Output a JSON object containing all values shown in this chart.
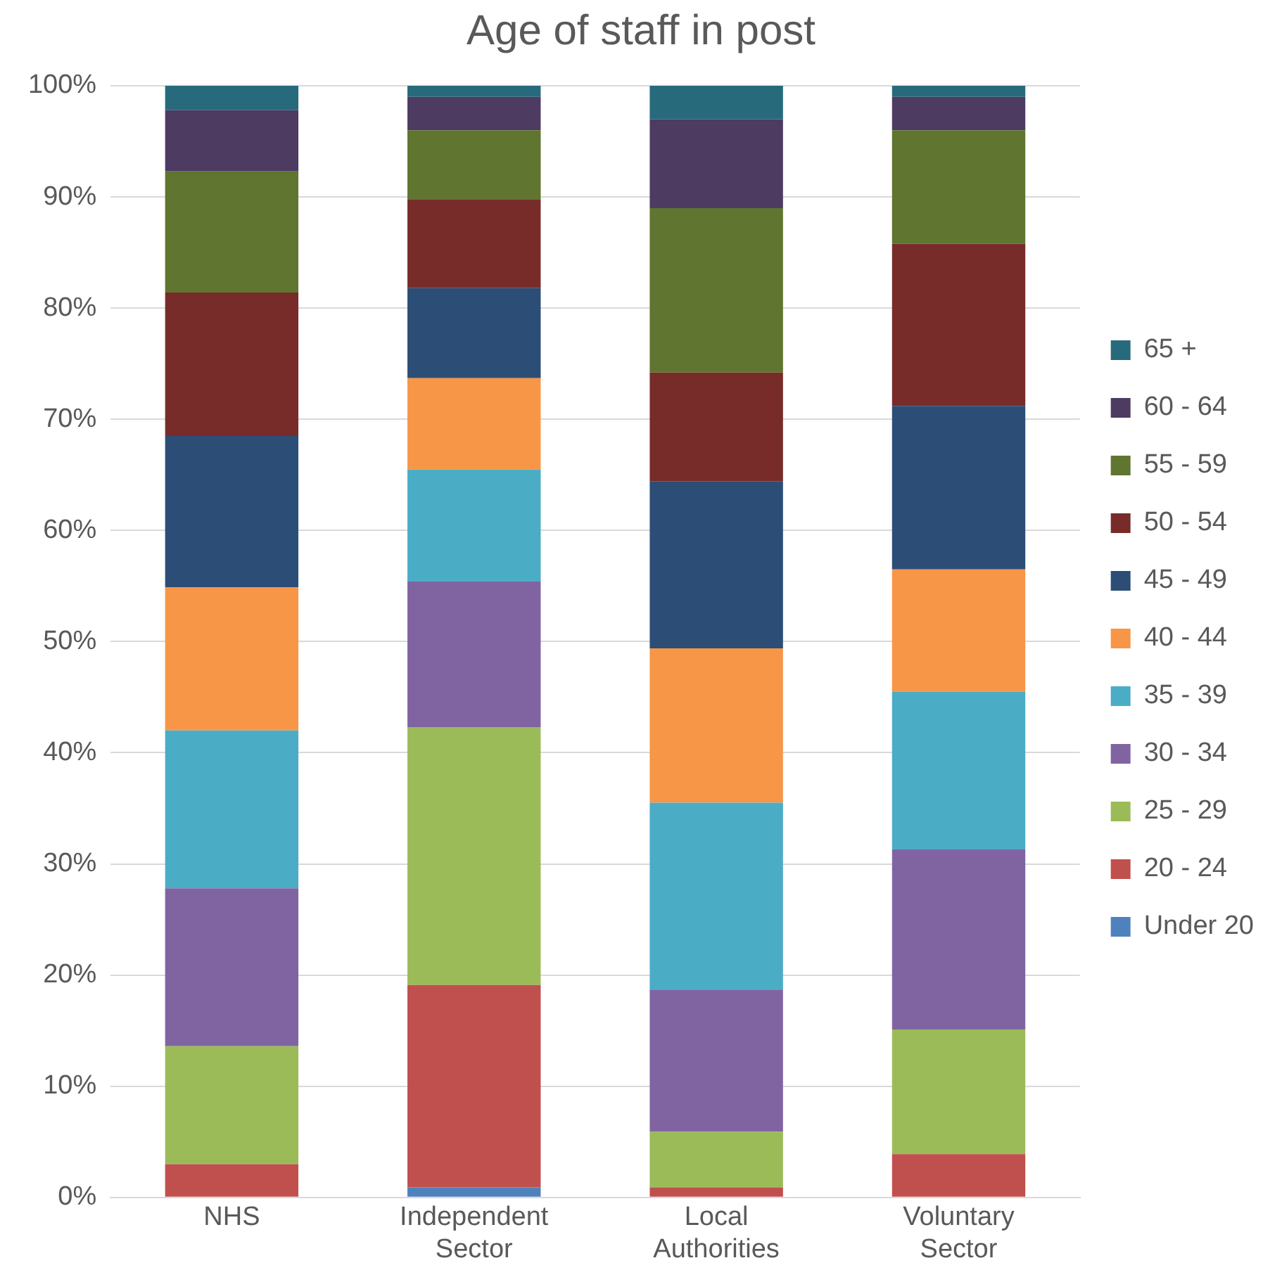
{
  "chart_data": {
    "type": "bar",
    "title": "Age of staff in post",
    "stacked": true,
    "grid": "y",
    "legend": "right",
    "categories": [
      "NHS",
      "Independent Sector",
      "Local Authorities",
      "Voluntary Sector"
    ],
    "ylim": [
      0,
      100
    ],
    "yticks": [
      {
        "value": 0,
        "label": "0%"
      },
      {
        "value": 10,
        "label": "10%"
      },
      {
        "value": 20,
        "label": "20%"
      },
      {
        "value": 30,
        "label": "30%"
      },
      {
        "value": 40,
        "label": "40%"
      },
      {
        "value": 50,
        "label": "50%"
      },
      {
        "value": 60,
        "label": "60%"
      },
      {
        "value": 70,
        "label": "70%"
      },
      {
        "value": 80,
        "label": "80%"
      },
      {
        "value": 90,
        "label": "90%"
      },
      {
        "value": 100,
        "label": "100%"
      }
    ],
    "series": [
      {
        "name": "Under 20",
        "color": "#4f81bd",
        "values": [
          0,
          0.9,
          0,
          0
        ]
      },
      {
        "name": "20 - 24",
        "color": "#c0504d",
        "values": [
          3.0,
          18.2,
          0.9,
          3.9
        ]
      },
      {
        "name": "25 - 29",
        "color": "#9bbb59",
        "values": [
          10.6,
          23.2,
          5.0,
          11.2
        ]
      },
      {
        "name": "30 - 34",
        "color": "#8064a2",
        "values": [
          14.2,
          13.1,
          12.8,
          16.2
        ]
      },
      {
        "name": "35 - 39",
        "color": "#4bacc6",
        "values": [
          14.2,
          10.1,
          16.8,
          14.2
        ]
      },
      {
        "name": "40 - 44",
        "color": "#f79646",
        "values": [
          12.9,
          8.2,
          13.9,
          11.0
        ]
      },
      {
        "name": "45 - 49",
        "color": "#2c4d75",
        "values": [
          13.6,
          8.1,
          15.0,
          14.7
        ]
      },
      {
        "name": "50 - 54",
        "color": "#772c2a",
        "values": [
          12.9,
          8.0,
          9.8,
          14.6
        ]
      },
      {
        "name": "55 - 59",
        "color": "#5f7530",
        "values": [
          10.9,
          6.2,
          14.8,
          10.2
        ]
      },
      {
        "name": "60 - 64",
        "color": "#4d3b62",
        "values": [
          5.5,
          3.0,
          8.0,
          3.0
        ]
      },
      {
        "name": "65 +",
        "color": "#276a7c",
        "values": [
          2.2,
          1.0,
          3.0,
          1.0
        ]
      }
    ]
  }
}
